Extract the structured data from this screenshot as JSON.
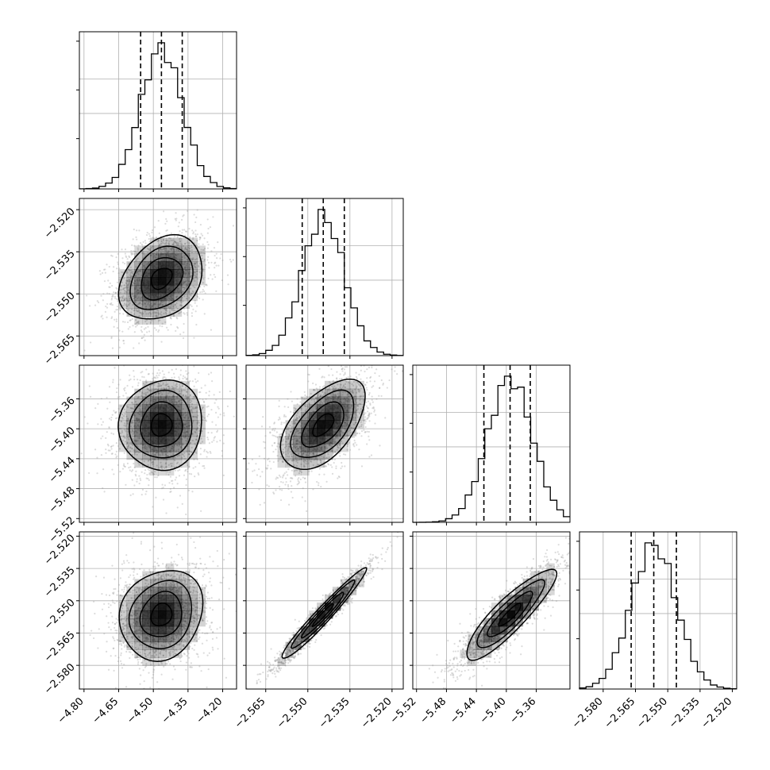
{
  "chart_data": {
    "type": "corner",
    "parameters": [
      {
        "range": [
          -4.82,
          -4.14
        ],
        "hist_ticks": [
          "-4.80",
          "-4.65",
          "-4.50",
          "-4.35",
          "-4.20"
        ],
        "ticks": [
          -4.8,
          -4.65,
          -4.5,
          -4.35,
          -4.2
        ],
        "mean": -4.465,
        "std": 0.09,
        "quantiles": [
          -4.555,
          -4.465,
          -4.375
        ],
        "hist_scale": [
          0.12,
          0.28,
          0.54,
          0.95,
          1.0
        ]
      },
      {
        "range": [
          -2.572,
          -2.516
        ],
        "ticks": [
          -2.565,
          -2.55,
          -2.535,
          -2.52
        ],
        "mean": -2.5445,
        "std": 0.0075,
        "quantiles": [
          -2.552,
          -2.5445,
          -2.537
        ]
      },
      {
        "range": [
          -5.525,
          -5.315
        ],
        "ticks": [
          -5.52,
          -5.48,
          -5.44,
          -5.4,
          -5.36
        ],
        "mean": -5.395,
        "std": 0.03,
        "quantiles": [
          -5.43,
          -5.395,
          -5.368
        ]
      },
      {
        "range": [
          -2.591,
          -2.518
        ],
        "ticks": [
          -2.58,
          -2.565,
          -2.55,
          -2.535,
          -2.52
        ],
        "mean": -2.5565,
        "std": 0.0105,
        "quantiles": [
          -2.567,
          -2.5565,
          -2.546
        ]
      }
    ],
    "tick_labels": {
      "x0": [
        "−4.80",
        "−4.65",
        "−4.50",
        "−4.35",
        "−4.20"
      ],
      "x1": [
        "−2.565",
        "−2.550",
        "−2.535",
        "−2.520"
      ],
      "x2": [
        "−5.52",
        "−5.48",
        "−5.44",
        "−5.40",
        "−5.36"
      ],
      "x3": [
        "−2.580",
        "−2.565",
        "−2.550",
        "−2.535",
        "−2.520"
      ],
      "y1": [
        "−2.520",
        "−2.535",
        "−2.550",
        "−2.565"
      ],
      "y2": [
        "−5.36",
        "−5.40",
        "−5.44",
        "−5.48",
        "−5.52"
      ],
      "y3": [
        "−2.520",
        "−2.535",
        "−2.550",
        "−2.565",
        "−2.580"
      ]
    },
    "correlations": {
      "1-0": 0.3,
      "2-0": 0.05,
      "2-1": 0.55,
      "3-0": 0.15,
      "3-1": 0.97,
      "3-2": 0.88
    },
    "quantile_levels": [
      0.16,
      0.5,
      0.84
    ],
    "contour_levels": [
      0.5,
      1.0,
      1.5,
      2.0
    ],
    "grid": true,
    "colors": {
      "contour": "#000000",
      "points": "#9a9a9a",
      "density": "#000000"
    }
  }
}
